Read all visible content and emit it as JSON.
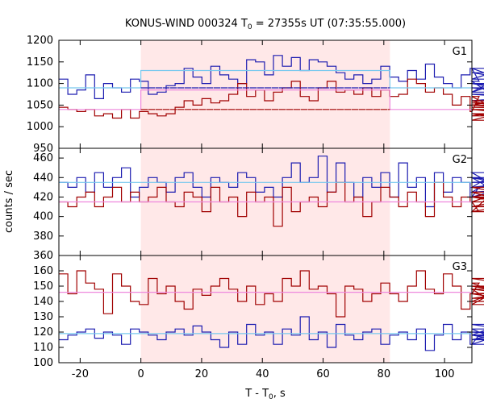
{
  "chart_data": {
    "type": "line",
    "title_prefix": "KONUS-WIND 000324 T",
    "title_sub": "0",
    "title_suffix": " = 27355s UT (07:35:55.000)",
    "xlabel_prefix": "T - T",
    "xlabel_sub": "0",
    "xlabel_suffix": ", s",
    "ylabel": "counts / sec",
    "xlim": [
      -27,
      109
    ],
    "x_ticks": [
      -20,
      0,
      20,
      40,
      60,
      80,
      100
    ],
    "grid": false,
    "highlight": {
      "start": 0,
      "end": 82,
      "color": "#ffe8e8"
    },
    "bin_width": 2.944,
    "bin_start": -27,
    "colors": {
      "red": "#a00000",
      "blue": "#1c1cb0",
      "cyan_bg": "#77c8ee",
      "pink_bg": "#ee88dd"
    },
    "panels": [
      {
        "label": "G1",
        "ylim": [
          950,
          1200
        ],
        "y_ticks": [
          950,
          1000,
          1050,
          1100,
          1150,
          1200
        ],
        "series": [
          {
            "color": "blue",
            "values": [
              1110,
              1075,
              1085,
              1120,
              1065,
              1100,
              1090,
              1080,
              1110,
              1105,
              1075,
              1080,
              1095,
              1100,
              1135,
              1115,
              1100,
              1140,
              1120,
              1110,
              1100,
              1155,
              1150,
              1120,
              1165,
              1140,
              1160,
              1130,
              1155,
              1150,
              1140,
              1125,
              1110,
              1120,
              1100,
              1110,
              1140,
              1115,
              1105,
              1130,
              1110,
              1145,
              1115,
              1100,
              1090,
              1120,
              1135,
              1105,
              1080,
              1110,
              1135,
              1100,
              1080,
              1125,
              1100,
              1090,
              1075,
              1060,
              1080
            ]
          },
          {
            "color": "red",
            "values": [
              1045,
              1040,
              1035,
              1040,
              1025,
              1030,
              1020,
              1040,
              1020,
              1035,
              1030,
              1025,
              1030,
              1045,
              1060,
              1050,
              1065,
              1055,
              1060,
              1075,
              1100,
              1070,
              1085,
              1060,
              1080,
              1090,
              1105,
              1070,
              1060,
              1090,
              1105,
              1080,
              1085,
              1075,
              1090,
              1070,
              1085,
              1070,
              1075,
              1110,
              1100,
              1080,
              1090,
              1075,
              1050,
              1070,
              1035,
              1070,
              1050,
              1060,
              1040,
              1030,
              1015,
              1050,
              1040,
              1025,
              1055,
              1045,
              1040
            ]
          },
          {
            "color": "cyan_bg",
            "values": [
              1090,
              1130,
              1090
            ]
          },
          {
            "color": "pink_bg",
            "values": [
              1040,
              1085,
              1040
            ]
          },
          {
            "color": "blue",
            "values": [
              1090,
              1090
            ]
          },
          {
            "color": "red",
            "values": [
              1040,
              1040
            ]
          }
        ]
      },
      {
        "label": "G2",
        "ylim": [
          360,
          470
        ],
        "y_ticks": [
          360,
          380,
          400,
          420,
          440,
          460
        ],
        "series": [
          {
            "color": "blue",
            "values": [
              435,
              430,
              440,
              425,
              445,
              430,
              440,
              450,
              420,
              430,
              440,
              435,
              425,
              440,
              445,
              430,
              420,
              440,
              435,
              430,
              445,
              440,
              425,
              430,
              420,
              440,
              455,
              435,
              440,
              462,
              425,
              455,
              435,
              420,
              440,
              430,
              445,
              420,
              455,
              430,
              440,
              410,
              445,
              425,
              440,
              435,
              420,
              430,
              440,
              425,
              445,
              420,
              435,
              440,
              425,
              430,
              440,
              430,
              435
            ]
          },
          {
            "color": "red",
            "values": [
              415,
              410,
              420,
              425,
              410,
              420,
              430,
              415,
              425,
              415,
              420,
              430,
              415,
              410,
              425,
              420,
              405,
              430,
              415,
              420,
              400,
              425,
              415,
              420,
              390,
              430,
              405,
              415,
              420,
              410,
              425,
              435,
              415,
              420,
              400,
              415,
              430,
              420,
              410,
              425,
              415,
              400,
              435,
              420,
              410,
              420,
              415,
              405,
              420,
              425,
              415,
              430,
              420,
              410,
              425,
              405,
              420,
              410,
              415
            ]
          },
          {
            "color": "cyan_bg",
            "values": [
              435,
              435,
              435
            ]
          },
          {
            "color": "pink_bg",
            "values": [
              415,
              415,
              415
            ]
          }
        ]
      },
      {
        "label": "G3",
        "ylim": [
          100,
          170
        ],
        "y_ticks": [
          100,
          110,
          120,
          130,
          140,
          150,
          160
        ],
        "series": [
          {
            "color": "red",
            "values": [
              158,
              145,
              160,
              152,
              148,
              132,
              158,
              150,
              140,
              138,
              155,
              145,
              150,
              140,
              135,
              148,
              144,
              150,
              155,
              148,
              140,
              150,
              138,
              145,
              140,
              155,
              150,
              160,
              148,
              150,
              145,
              130,
              150,
              148,
              140,
              145,
              152,
              145,
              140,
              150,
              160,
              148,
              145,
              158,
              150,
              135,
              145,
              152,
              148,
              138,
              150,
              145,
              140,
              155,
              148,
              142,
              150,
              145,
              148
            ]
          },
          {
            "color": "blue",
            "values": [
              115,
              118,
              120,
              122,
              116,
              120,
              118,
              112,
              122,
              120,
              118,
              115,
              120,
              122,
              118,
              124,
              120,
              115,
              110,
              120,
              112,
              125,
              118,
              120,
              112,
              122,
              118,
              130,
              115,
              120,
              110,
              125,
              118,
              115,
              120,
              122,
              112,
              118,
              120,
              115,
              122,
              108,
              118,
              125,
              115,
              120,
              112,
              118,
              122,
              115,
              120,
              118,
              112,
              125,
              118,
              115,
              120,
              118,
              120
            ]
          },
          {
            "color": "pink_bg",
            "values": [
              146,
              146,
              146
            ]
          },
          {
            "color": "cyan_bg",
            "values": [
              119,
              119,
              119
            ]
          }
        ]
      }
    ]
  }
}
